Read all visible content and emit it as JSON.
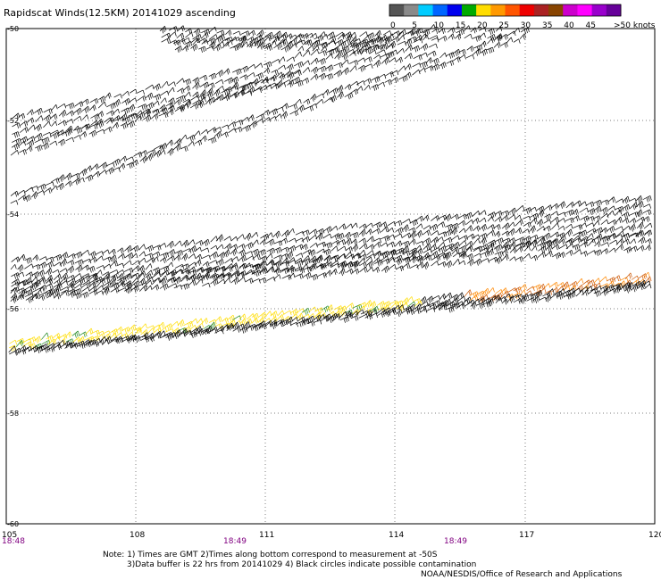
{
  "title": "Rapidscat Winds(12.5KM) 20141029 ascending",
  "legend": {
    "colors": [
      "#555555",
      "#8a8a8a",
      "#00ccff",
      "#0066ff",
      "#0000ee",
      "#00aa00",
      "#ffdd00",
      "#ff9900",
      "#ff5500",
      "#ee0000",
      "#aa2222",
      "#884400",
      "#cc00cc",
      "#ff00ff",
      "#9900cc",
      "#660099"
    ],
    "labels": [
      "0",
      "5",
      "10",
      "15",
      "20",
      "25",
      "30",
      "35",
      "40",
      "45",
      ">50 knots"
    ]
  },
  "axes": {
    "lon_ticks": [
      "105",
      "108",
      "111",
      "114",
      "117",
      "120"
    ],
    "lat_ticks": [
      "-50",
      "-52",
      "-54",
      "-56",
      "-58",
      "-60"
    ],
    "time_labels": [
      "18:48",
      "18:49",
      "18:49"
    ]
  },
  "notes": {
    "line1": "Note: 1) Times are GMT 2)Times along bottom correspond to measurement at -50S",
    "line2": "3)Data buffer is 22 hrs from 20141029 4) Black circles indicate possible contamination",
    "line3": "NOAA/NESDIS/Office of Research and Applications"
  }
}
